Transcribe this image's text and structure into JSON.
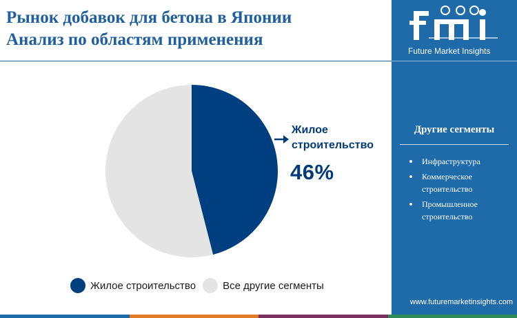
{
  "title": {
    "line1": "Рынок добавок для бетона в Японии",
    "line2": "Анализ по областям применения"
  },
  "chart_data": {
    "type": "pie",
    "slices": [
      {
        "label": "Жилое строительство",
        "value": 46,
        "color": "#003f7f"
      },
      {
        "label": "Все другие сегменты",
        "value": 54,
        "color": "#e4e4e4"
      }
    ],
    "legend": [
      "Жилое строительство",
      "Все другие сегменты"
    ]
  },
  "callout": {
    "label_line1": "Жилое",
    "label_line2": "строительство",
    "value": "46%"
  },
  "sidebar": {
    "brand_name": "Future Market Insights",
    "segments_title": "Другие сегменты",
    "segments": [
      "Инфраструктура",
      "Коммерческое строительство",
      "Промышленное строительство"
    ],
    "website": "www.futuremarketinsights.com"
  },
  "colors": {
    "brand_blue": "#1f6aa8",
    "dark_blue": "#003f7f",
    "light_gray": "#e4e4e4",
    "bottom_bar": [
      "#1f6aa8",
      "#e07b26",
      "#7b2f5e",
      "#2e8b57"
    ]
  }
}
